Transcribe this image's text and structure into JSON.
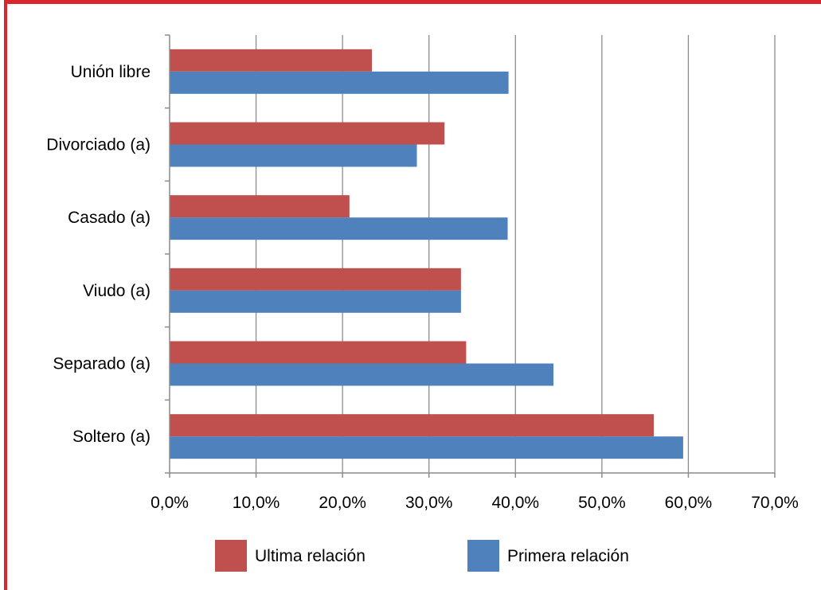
{
  "colors": {
    "frame": "#d9262c",
    "series_ultima": "#c0504d",
    "series_primera": "#4f81bd",
    "grid": "#8c8c8c"
  },
  "chart_data": {
    "type": "bar",
    "orientation": "horizontal",
    "categories": [
      "Soltero (a)",
      "Separado (a)",
      "Viudo (a)",
      "Casado (a)",
      "Divorciado (a)",
      "Unión libre"
    ],
    "series": [
      {
        "name": "Ultima relación",
        "values": [
          56.0,
          34.3,
          33.7,
          20.8,
          31.8,
          23.4
        ]
      },
      {
        "name": "Primera relación",
        "values": [
          59.4,
          44.4,
          33.7,
          39.1,
          28.6,
          39.2
        ]
      }
    ],
    "xlim": [
      0,
      70
    ],
    "xticks": [
      "0,0%",
      "10,0%",
      "20,0%",
      "30,0%",
      "40,0%",
      "50,0%",
      "60,0%",
      "70,0%"
    ],
    "grid": true,
    "legend": "bottom",
    "title": "",
    "xlabel": "",
    "ylabel": ""
  }
}
